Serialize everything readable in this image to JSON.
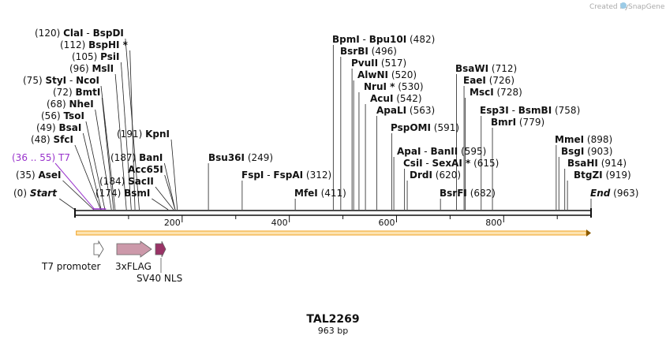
{
  "header": {
    "credit": "Created by",
    "brand": "SnapGene"
  },
  "plasmid": {
    "name": "TAL2269",
    "length_label": "963 bp"
  },
  "axis": {
    "ticks": [
      {
        "value": 200,
        "label": "200"
      },
      {
        "value": 400,
        "label": "400"
      },
      {
        "value": 600,
        "label": "600"
      },
      {
        "value": 800,
        "label": "800"
      }
    ]
  },
  "sites": [
    {
      "left": "(120)",
      "name": "ClaI",
      "conn": "-",
      "name2": "BspDI",
      "pos": 120
    },
    {
      "left": "(112)",
      "name": "BspHI *",
      "pos": 112
    },
    {
      "left": "(105)",
      "name": "PsiI",
      "pos": 105
    },
    {
      "left": "(96)",
      "name": "MslI",
      "pos": 96
    },
    {
      "left": "(75)",
      "name": "StyI",
      "conn": "-",
      "name2": "NcoI",
      "pos": 75
    },
    {
      "left": "(72)",
      "name": "BmtI",
      "pos": 72
    },
    {
      "left": "(68)",
      "name": "NheI",
      "pos": 68
    },
    {
      "left": "(56)",
      "name": "TsoI",
      "pos": 56
    },
    {
      "left": "(49)",
      "name": "BsaI",
      "pos": 49
    },
    {
      "left": "(48)",
      "name": "SfcI",
      "pos": 48
    },
    {
      "left": "(35)",
      "name": "AseI",
      "pos": 35
    },
    {
      "left": "(0)",
      "name": "Start",
      "pos": 0,
      "italic": true
    },
    {
      "left": "(191)",
      "name": "KpnI",
      "pos": 191
    },
    {
      "left": "(187)",
      "name": "BanI",
      "pos": 187
    },
    {
      "name": "Acc65I",
      "pos": 187
    },
    {
      "left": "(184)",
      "name": "SacII",
      "pos": 184
    },
    {
      "left": "(174)",
      "name": "BsmI",
      "pos": 174
    },
    {
      "name": "Bsu36I",
      "right": "(249)",
      "pos": 249
    },
    {
      "name": "FspI",
      "conn": "-",
      "name2": "FspAI",
      "right": "(312)",
      "pos": 312
    },
    {
      "name": "MfeI",
      "right": "(411)",
      "pos": 411
    },
    {
      "name": "BpmI",
      "conn": "-",
      "name2": "Bpu10I",
      "right": "(482)",
      "pos": 482
    },
    {
      "name": "BsrBI",
      "right": "(496)",
      "pos": 496
    },
    {
      "name": "PvuII",
      "right": "(517)",
      "pos": 517
    },
    {
      "name": "AlwNI",
      "right": "(520)",
      "pos": 520
    },
    {
      "name": "NruI *",
      "right": "(530)",
      "pos": 530
    },
    {
      "name": "AcuI",
      "right": "(542)",
      "pos": 542
    },
    {
      "name": "ApaLI",
      "right": "(563)",
      "pos": 563
    },
    {
      "name": "PspOMI",
      "right": "(591)",
      "pos": 591
    },
    {
      "name": "ApaI",
      "conn": "-",
      "name2": "BanII",
      "right": "(595)",
      "pos": 595
    },
    {
      "name": "CsiI",
      "conn": "-",
      "name2": "SexAI *",
      "right": "(615)",
      "pos": 615
    },
    {
      "name": "DrdI",
      "right": "(620)",
      "pos": 620
    },
    {
      "name": "BsrFI",
      "right": "(682)",
      "pos": 682
    },
    {
      "name": "BsaWI",
      "right": "(712)",
      "pos": 712
    },
    {
      "name": "EaeI",
      "right": "(726)",
      "pos": 726
    },
    {
      "name": "MscI",
      "right": "(728)",
      "pos": 728
    },
    {
      "name": "Esp3I",
      "conn": "-",
      "name2": "BsmBI",
      "right": "(758)",
      "pos": 758
    },
    {
      "name": "BmrI",
      "right": "(779)",
      "pos": 779
    },
    {
      "name": "MmeI",
      "right": "(898)",
      "pos": 898
    },
    {
      "name": "BsgI",
      "right": "(903)",
      "pos": 903
    },
    {
      "name": "BsaHI",
      "right": "(914)",
      "pos": 914
    },
    {
      "name": "BtgZI",
      "right": "(919)",
      "pos": 919
    },
    {
      "name": "End",
      "right": "(963)",
      "pos": 963,
      "italic": true
    }
  ],
  "primer": {
    "range": "(36 .. 55)",
    "name": "T7",
    "color": "#9933cc",
    "start": 36,
    "end": 55
  },
  "orf": {
    "color": "#f0a020",
    "start": 1,
    "end": 963
  },
  "features": [
    {
      "name": "T7 promoter",
      "start": 36,
      "end": 55,
      "color": "#ffffff"
    },
    {
      "name": "3xFLAG",
      "start": 78,
      "end": 144,
      "color": "#cc99aa"
    },
    {
      "name": "SV40 NLS",
      "start": 150,
      "end": 171,
      "color": "#993366"
    }
  ]
}
